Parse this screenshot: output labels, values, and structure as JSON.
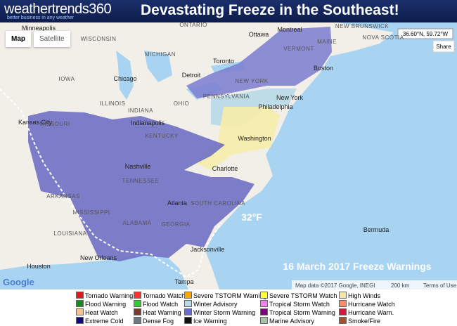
{
  "header": {
    "logo": "weathertrends360",
    "tagline": "better business in any weather",
    "title": "Devastating Freeze in the Southeast!"
  },
  "map": {
    "buttons": [
      "Map",
      "Satellite"
    ],
    "coordinates": "36.60°N, 59.72°W",
    "share": "Share",
    "places": [
      "Minneapolis",
      "WISCONSIN",
      "MICHIGAN",
      "ONTARIO",
      "Montreal",
      "Ottawa",
      "VERMONT",
      "MAINE",
      "NEW BRUNSWICK",
      "NOVA SCOTIA",
      "Toronto",
      "Boston",
      "Chicago",
      "Detroit",
      "NEW YORK",
      "IOWA",
      "ILLINOIS",
      "INDIANA",
      "OHIO",
      "PENNSYLVANIA",
      "New York",
      "Philadelphia",
      "Kansas City",
      "MISSOURI",
      "Indianapolis",
      "Washington",
      "KENTUCKY",
      "Nashville",
      "TENNESSEE",
      "Charlotte",
      "ARKANSAS",
      "Atlanta",
      "SOUTH CAROLINA",
      "MISSISSIPPI",
      "ALABAMA",
      "GEORGIA",
      "LOUISIANA",
      "Jacksonville",
      "New Orleans",
      "Houston",
      "Tampa",
      "Bermuda"
    ],
    "isotherm_label": "32°F",
    "caption": "16 March 2017 Freeze Warnings",
    "attribution": {
      "logo": "Google",
      "data": "Map data ©2017 Google, INEGI",
      "scale": "200 km",
      "terms": "Terms of Use"
    }
  },
  "legend": [
    {
      "label": "Tornado Warning",
      "color": "#e31a1c"
    },
    {
      "label": "Flood Warning",
      "color": "#1a8a1a"
    },
    {
      "label": "Heat Watch",
      "color": "#f6c08f"
    },
    {
      "label": "Extreme Cold",
      "color": "#0a0a80"
    },
    {
      "label": "Tornado Watch",
      "color": "#ff3030"
    },
    {
      "label": "Flood Watch",
      "color": "#33cc33"
    },
    {
      "label": "Heat Warning",
      "color": "#7a3b2e"
    },
    {
      "label": "Dense Fog",
      "color": "#707a80"
    },
    {
      "label": "Severe TSTORM Warning",
      "color": "#ffa500"
    },
    {
      "label": "Winter Advisory",
      "color": "#b8d8e8"
    },
    {
      "label": "Winter Storm Warning",
      "color": "#6b6bd6"
    },
    {
      "label": "Ice Warning",
      "color": "#111111"
    },
    {
      "label": "Severe TSTORM Watch",
      "color": "#ffff33"
    },
    {
      "label": "Tropical Storm Watch",
      "color": "#ee82ee"
    },
    {
      "label": "Tropical Storm Warning",
      "color": "#800080"
    },
    {
      "label": "Marine Advisory",
      "color": "#a9c2a9"
    },
    {
      "label": "High Winds",
      "color": "#f3e6a8"
    },
    {
      "label": "Hurricane Watch",
      "color": "#ff8c69"
    },
    {
      "label": "Hurricane Warn.",
      "color": "#dc143c"
    },
    {
      "label": "Smoke/Fire",
      "color": "#a0522d"
    }
  ]
}
